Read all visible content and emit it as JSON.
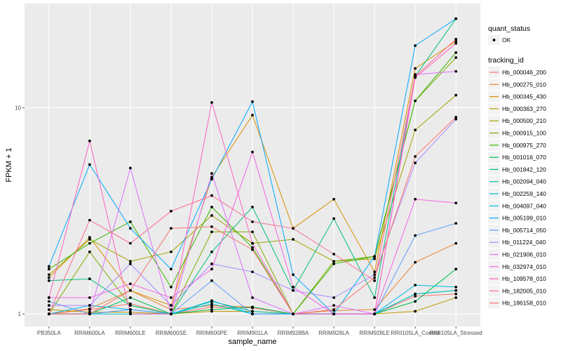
{
  "chart_data": {
    "type": "line",
    "title": "",
    "xlabel": "sample_name",
    "ylabel": "FPKM + 1",
    "yscale": "log10",
    "ylim": [
      0.87,
      32
    ],
    "y_ticks": [
      1,
      10
    ],
    "y_tick_labels": [
      "1",
      "10"
    ],
    "grid": true,
    "categories": [
      "PB350LA",
      "RRIM600LA",
      "RRIM600LE",
      "RRIM600SE",
      "RRIM600PE",
      "RRIM901LA",
      "RRIM928BA",
      "RRIM928LA",
      "RRIM928LE",
      "RRII105LA_Control",
      "RRII105LA_Stressed"
    ],
    "legend_position": "right",
    "legends": [
      {
        "title": "quant_status",
        "items": [
          {
            "label": "OK",
            "symbol": "point"
          }
        ]
      },
      {
        "title": "tracking_id"
      }
    ],
    "series": [
      {
        "name": "Hb_000046_200",
        "color": "#F8766D",
        "values": [
          1.0,
          1.05,
          1.12,
          1.0,
          1.08,
          1.07,
          1.0,
          1.0,
          1.0,
          1.22,
          1.25
        ]
      },
      {
        "name": "Hb_000275_010",
        "color": "#EA8331",
        "values": [
          1.0,
          1.06,
          1.3,
          1.05,
          1.1,
          1.08,
          1.0,
          1.04,
          1.05,
          1.78,
          2.2
        ]
      },
      {
        "name": "Hb_000345_430",
        "color": "#D89000",
        "values": [
          1.5,
          2.35,
          1.3,
          1.1,
          4.6,
          9.2,
          2.6,
          3.6,
          1.6,
          15.5,
          21.0
        ]
      },
      {
        "name": "Hb_000363_270",
        "color": "#C09B00",
        "values": [
          1.05,
          1.02,
          1.02,
          1.0,
          1.03,
          1.03,
          1.0,
          1.0,
          1.0,
          1.03,
          1.2
        ]
      },
      {
        "name": "Hb_000500_210",
        "color": "#A3A500",
        "values": [
          1.55,
          2.3,
          1.8,
          2.0,
          3.0,
          2.2,
          2.3,
          1.8,
          1.85,
          7.8,
          11.5
        ]
      },
      {
        "name": "Hb_000915_100",
        "color": "#7CAE00",
        "values": [
          1.0,
          2.0,
          1.1,
          1.0,
          2.5,
          2.5,
          1.0,
          1.8,
          1.9,
          10.8,
          17.5
        ]
      },
      {
        "name": "Hb_000975_270",
        "color": "#39B600",
        "values": [
          1.65,
          2.2,
          2.8,
          1.35,
          3.3,
          2.1,
          1.0,
          1.75,
          1.9,
          10.8,
          18.5
        ]
      },
      {
        "name": "Hb_001016_070",
        "color": "#00BB4E",
        "values": [
          1.0,
          1.0,
          1.2,
          1.0,
          1.05,
          1.08,
          1.0,
          1.0,
          1.0,
          1.15,
          1.65
        ]
      },
      {
        "name": "Hb_001842_120",
        "color": "#00BF7D",
        "values": [
          1.45,
          1.48,
          1.1,
          1.0,
          2.0,
          3.3,
          1.3,
          2.9,
          1.2,
          14.2,
          27.0
        ]
      },
      {
        "name": "Hb_002094_040",
        "color": "#00C1A3",
        "values": [
          1.0,
          1.0,
          1.05,
          1.0,
          1.15,
          1.03,
          1.0,
          1.0,
          1.0,
          1.25,
          1.3
        ]
      },
      {
        "name": "Hb_002259_140",
        "color": "#00BFC4",
        "values": [
          1.0,
          1.0,
          1.0,
          1.0,
          1.12,
          1.0,
          1.0,
          1.0,
          1.0,
          1.25,
          1.3
        ]
      },
      {
        "name": "Hb_004097_040",
        "color": "#00B8E7",
        "values": [
          1.0,
          1.1,
          1.05,
          1.0,
          1.16,
          1.0,
          1.0,
          1.0,
          1.0,
          1.38,
          1.35
        ]
      },
      {
        "name": "Hb_005199_010",
        "color": "#00A9FF",
        "values": [
          1.7,
          5.3,
          2.6,
          1.65,
          4.5,
          10.7,
          1.55,
          1.0,
          1.9,
          20.0,
          27.0
        ]
      },
      {
        "name": "Hb_005714_050",
        "color": "#619CFF",
        "values": [
          1.15,
          1.0,
          1.05,
          1.0,
          1.45,
          1.0,
          1.0,
          1.0,
          1.0,
          2.4,
          2.75
        ]
      },
      {
        "name": "Hb_011224_040",
        "color": "#AE87FF",
        "values": [
          1.1,
          1.1,
          1.75,
          1.1,
          1.75,
          1.6,
          1.3,
          1.2,
          1.55,
          5.4,
          8.8
        ]
      },
      {
        "name": "Hb_021906_010",
        "color": "#DB72FB",
        "values": [
          1.0,
          1.0,
          5.1,
          1.0,
          4.8,
          1.2,
          1.0,
          1.1,
          1.0,
          14.5,
          15.0
        ]
      },
      {
        "name": "Hb_032974_010",
        "color": "#F564E3",
        "values": [
          1.2,
          1.2,
          1.4,
          1.2,
          1.65,
          6.1,
          1.35,
          1.0,
          1.0,
          3.6,
          3.45
        ]
      },
      {
        "name": "Hb_109578_010",
        "color": "#FF61C3",
        "values": [
          1.2,
          6.9,
          1.0,
          1.0,
          10.6,
          2.2,
          1.0,
          1.0,
          1.0,
          14.0,
          20.5
        ]
      },
      {
        "name": "Hb_182005_010",
        "color": "#FF6C91",
        "values": [
          1.0,
          2.85,
          2.2,
          3.15,
          3.75,
          2.8,
          2.6,
          1.95,
          1.45,
          14.2,
          21.5
        ]
      },
      {
        "name": "Hb_186158_010",
        "color": "#F8766D",
        "values": [
          1.0,
          1.0,
          1.3,
          2.6,
          2.65,
          2.05,
          1.0,
          1.05,
          1.5,
          5.8,
          9.0
        ]
      }
    ]
  }
}
